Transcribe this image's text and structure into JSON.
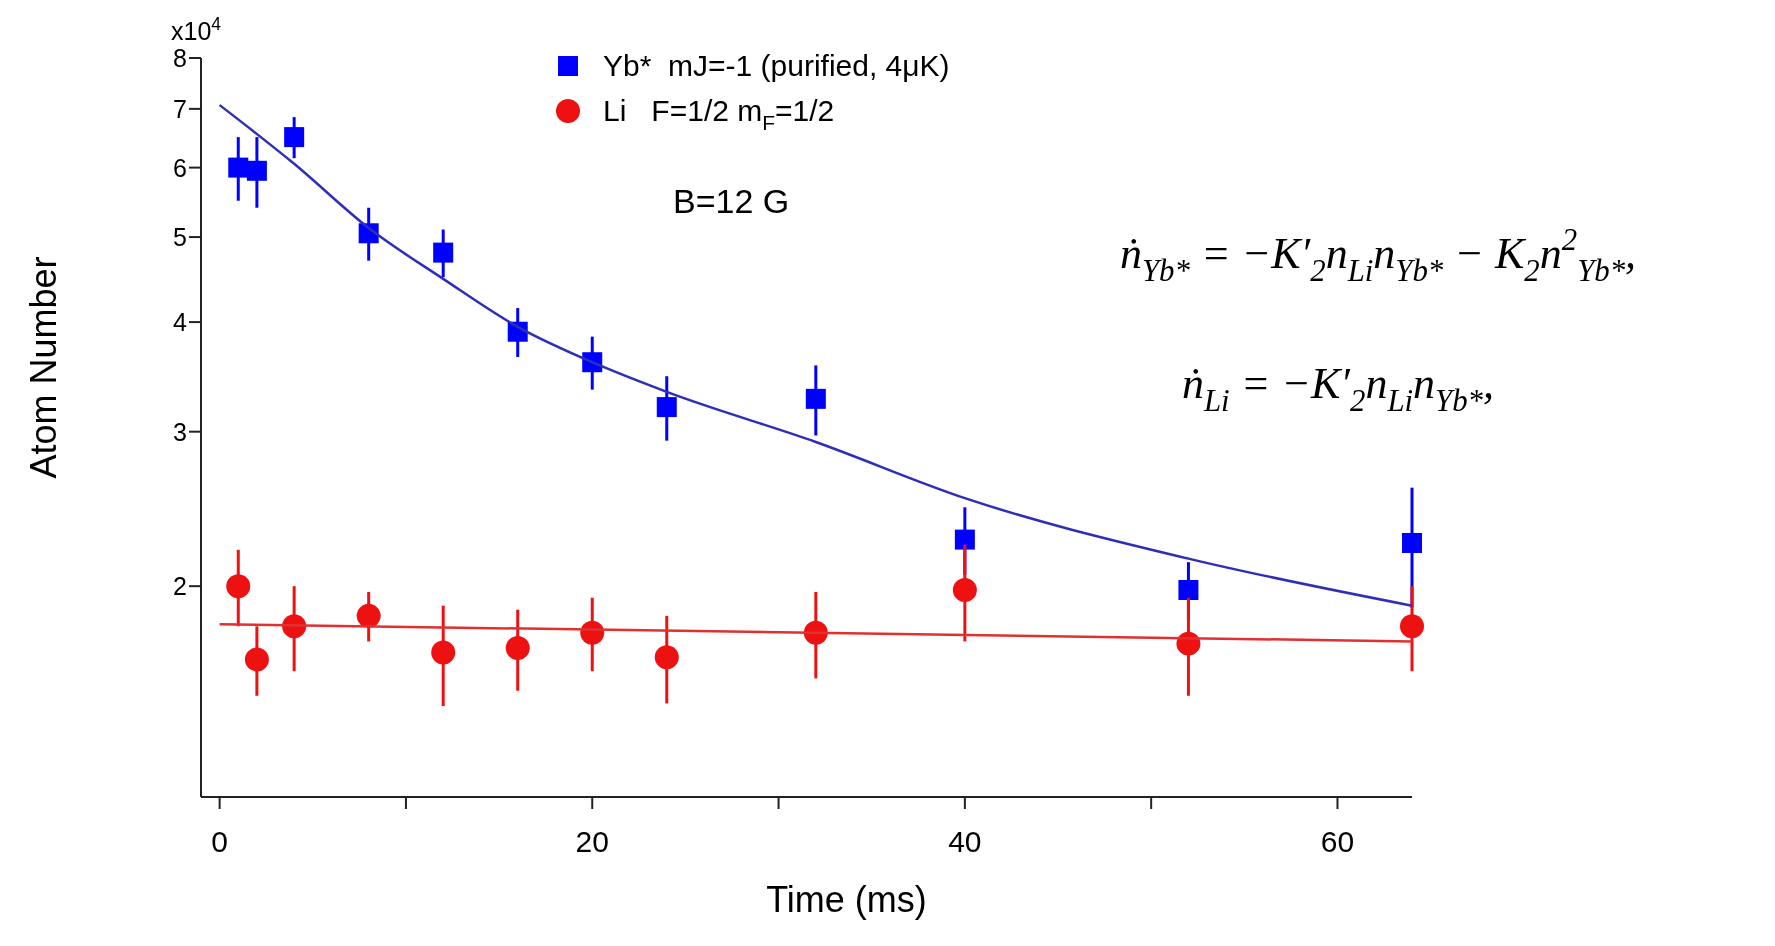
{
  "chart_data": {
    "type": "scatter",
    "xlabel": "Time (ms)",
    "ylabel": "Atom Number",
    "xlim": [
      -1,
      64
    ],
    "xticks": [
      0,
      {
        "value": 10,
        "label": null
      },
      20,
      {
        "value": 30,
        "label": null
      },
      40,
      {
        "value": 50,
        "label": null
      },
      60
    ],
    "ylim": [
      1.15,
      8
    ],
    "yticks": [
      2,
      3,
      4,
      5,
      6,
      7,
      8
    ],
    "log": "y",
    "grid": false,
    "legend": "top",
    "series": [
      {
        "name": "Yb*  mJ=-1 (purified, 4μK)",
        "marker": "square",
        "color": "#0000ff",
        "x": [
          1,
          2,
          4,
          8,
          12,
          16,
          20,
          24,
          32,
          40,
          52,
          64
        ],
        "values": [
          6.0,
          5.95,
          6.5,
          5.05,
          4.8,
          3.9,
          3.6,
          3.2,
          3.27,
          2.26,
          1.98,
          2.24
        ],
        "errors": [
          0.5,
          0.55,
          0.35,
          0.35,
          0.3,
          0.25,
          0.25,
          0.27,
          0.3,
          0.2,
          0.15,
          0.35
        ]
      },
      {
        "name": "Li   F=1/2 m$_{F}$=1/2",
        "marker": "circle",
        "color": "#ee1111",
        "x": [
          1,
          2,
          4,
          8,
          12,
          16,
          20,
          24,
          32,
          40,
          52,
          64
        ],
        "values": [
          2.0,
          1.65,
          1.8,
          1.85,
          1.68,
          1.7,
          1.77,
          1.66,
          1.77,
          1.98,
          1.72,
          1.8
        ],
        "errors": [
          0.2,
          0.15,
          0.2,
          0.12,
          0.22,
          0.18,
          0.17,
          0.19,
          0.2,
          0.25,
          0.22,
          0.2
        ]
      },
      {
        "type": "line",
        "color": "#2e2eb8",
        "x": [
          0,
          4,
          8,
          12,
          16,
          20,
          24,
          32,
          40,
          52,
          64
        ],
        "values": [
          7.07,
          6.06,
          5.12,
          4.48,
          3.95,
          3.6,
          3.33,
          2.92,
          2.52,
          2.15,
          1.9
        ]
      },
      {
        "type": "line",
        "color": "#e03030",
        "x": [
          0,
          64
        ],
        "values": [
          1.81,
          1.73
        ]
      }
    ],
    "annotations": [
      "x10$^{4}$",
      "B=12 G",
      "ṅ$_{Yb*}$ = −K′$_{2}$n$_{Li}$n$_{Yb*}$ − K$_{2}$n$^{2}$$_{Yb*}$,",
      "ṅ$_{Li}$ = −K′$_{2}$n$_{Li}$n$_{Yb*}$,"
    ]
  }
}
